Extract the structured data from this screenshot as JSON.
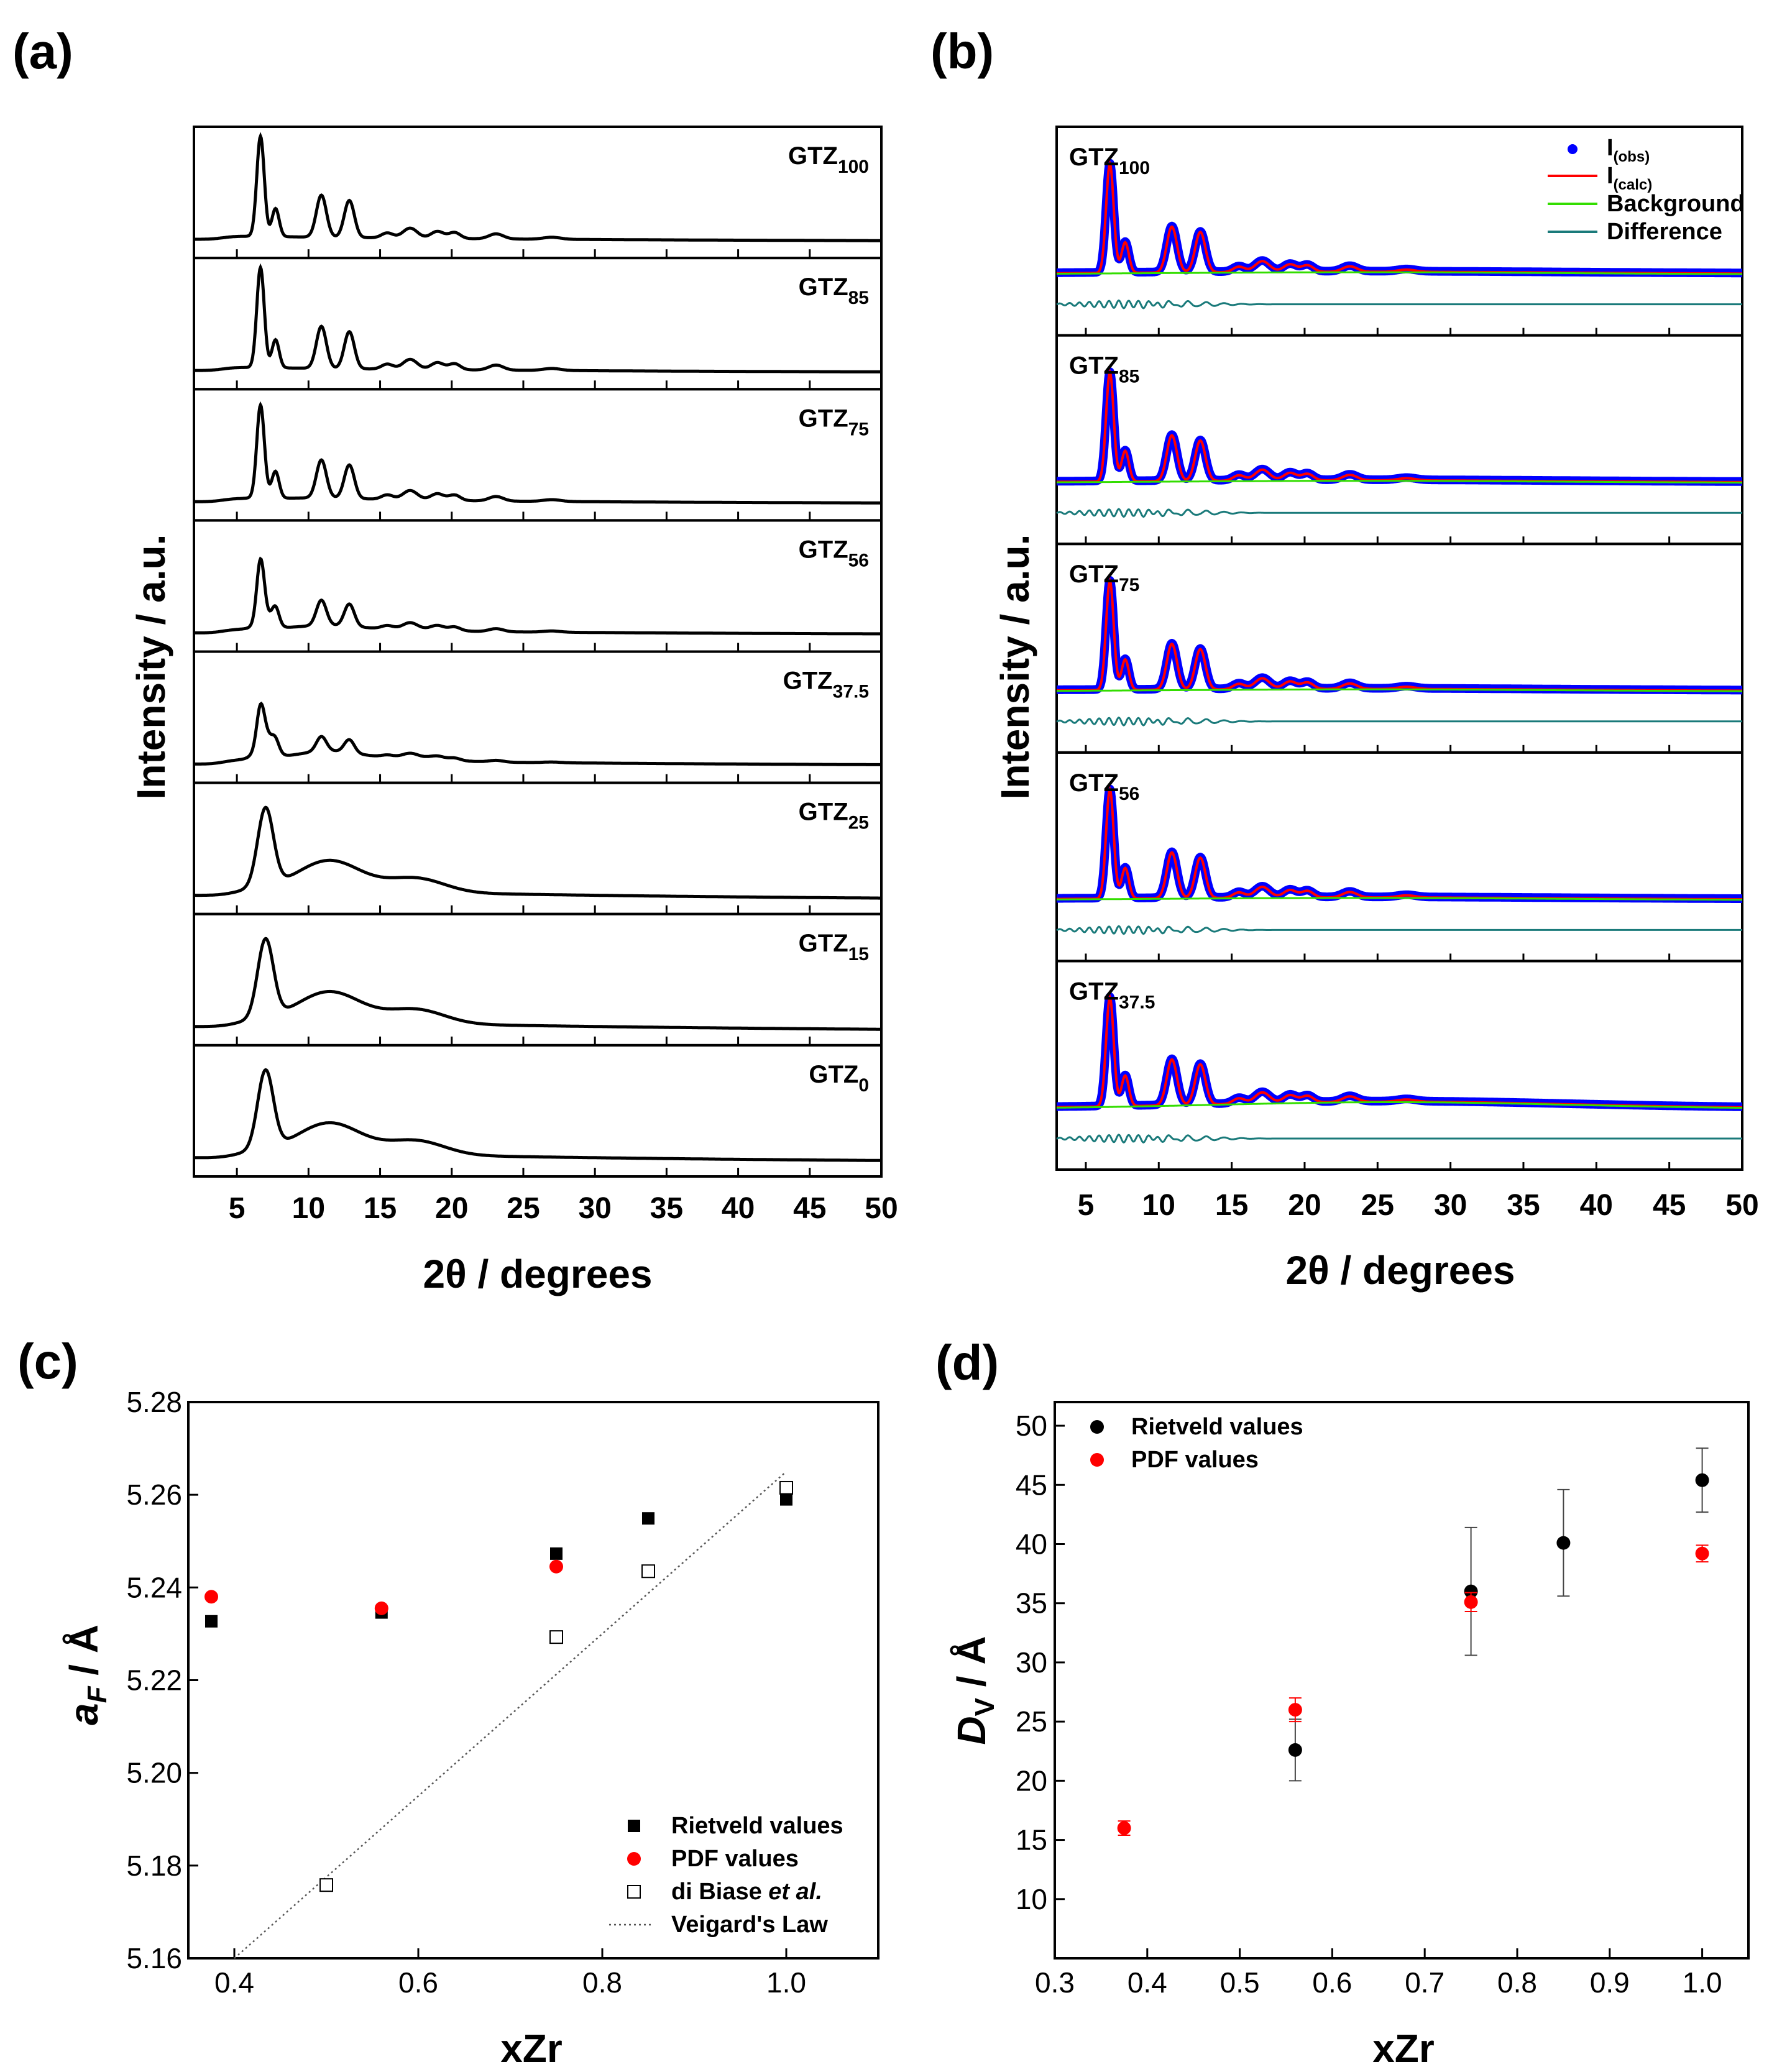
{
  "chart_data": [
    {
      "id": "a",
      "panel_label": "(a)",
      "type": "line",
      "title": "",
      "xlabel": "2θ / degrees",
      "ylabel": "Intensity / a.u.",
      "xlim": [
        2,
        50
      ],
      "xticks": [
        5,
        10,
        15,
        20,
        25,
        30,
        35,
        40,
        45,
        50
      ],
      "series": [
        {
          "name": "GTZ100",
          "base": "GTZ",
          "sub": "100",
          "peak_scale": 1.0,
          "amorphous": 0.0
        },
        {
          "name": "GTZ85",
          "base": "GTZ",
          "sub": "85",
          "peak_scale": 1.0,
          "amorphous": 0.0
        },
        {
          "name": "GTZ75",
          "base": "GTZ",
          "sub": "75",
          "peak_scale": 0.9,
          "amorphous": 0.05
        },
        {
          "name": "GTZ56",
          "base": "GTZ",
          "sub": "56",
          "peak_scale": 0.6,
          "amorphous": 0.15
        },
        {
          "name": "GTZ37.5",
          "base": "GTZ",
          "sub": "37.5",
          "peak_scale": 0.35,
          "amorphous": 0.3
        },
        {
          "name": "GTZ25",
          "base": "GTZ",
          "sub": "25",
          "peak_scale": 0.0,
          "amorphous": 1.0
        },
        {
          "name": "GTZ15",
          "base": "GTZ",
          "sub": "15",
          "peak_scale": 0.0,
          "amorphous": 1.0
        },
        {
          "name": "GTZ0",
          "base": "GTZ",
          "sub": "0",
          "peak_scale": 0.0,
          "amorphous": 1.0
        }
      ]
    },
    {
      "id": "b",
      "panel_label": "(b)",
      "type": "line",
      "title": "",
      "xlabel": "2θ / degrees",
      "ylabel": "Intensity / a.u.",
      "xlim": [
        3,
        50
      ],
      "xticks": [
        5,
        10,
        15,
        20,
        25,
        30,
        35,
        40,
        45,
        50
      ],
      "legend": [
        {
          "base": "I",
          "sub": "(obs)",
          "color": "#0000ff",
          "style": "dot"
        },
        {
          "base": "I",
          "sub": "(calc)",
          "color": "#ff0000",
          "style": "line"
        },
        {
          "base": "Background",
          "sub": "",
          "color": "#33dd00",
          "style": "line"
        },
        {
          "base": "Difference",
          "sub": "",
          "color": "#1a7a7a",
          "style": "line"
        }
      ],
      "series": [
        {
          "name": "GTZ100",
          "base": "GTZ",
          "sub": "100"
        },
        {
          "name": "GTZ85",
          "base": "GTZ",
          "sub": "85"
        },
        {
          "name": "GTZ75",
          "base": "GTZ",
          "sub": "75"
        },
        {
          "name": "GTZ56",
          "base": "GTZ",
          "sub": "56"
        },
        {
          "name": "GTZ37.5",
          "base": "GTZ",
          "sub": "37.5"
        }
      ]
    },
    {
      "id": "c",
      "panel_label": "(c)",
      "type": "scatter",
      "title": "",
      "xlabel": "xZr",
      "ylabel_italic": "a",
      "ylabel_sub": "F",
      "ylabel_rest": " / Å",
      "xlim": [
        0.35,
        1.1
      ],
      "ylim": [
        5.16,
        5.28
      ],
      "xticks": [
        0.4,
        0.6,
        0.8,
        1.0
      ],
      "xtick_labels": [
        "0.4",
        "0.6",
        "0.8",
        "1.0"
      ],
      "yticks": [
        5.16,
        5.18,
        5.2,
        5.22,
        5.24,
        5.26,
        5.28
      ],
      "ytick_labels": [
        "5.16",
        "5.18",
        "5.20",
        "5.22",
        "5.24",
        "5.26",
        "5.28"
      ],
      "series": [
        {
          "name": "Rietveld values",
          "marker": "filled-square",
          "color": "#000000",
          "x": [
            0.375,
            0.56,
            0.75,
            0.85,
            1.0
          ],
          "y": [
            5.2327,
            5.2346,
            5.2473,
            5.2549,
            5.259
          ]
        },
        {
          "name": "PDF values",
          "marker": "filled-circle",
          "color": "#ff0000",
          "x": [
            0.375,
            0.56,
            0.75
          ],
          "y": [
            5.238,
            5.2355,
            5.2445
          ]
        },
        {
          "name_plain": "di Biase ",
          "name_italic": "et al.",
          "marker": "open-square",
          "color": "#000000",
          "x": [
            0.5,
            0.75,
            0.85,
            1.0
          ],
          "y": [
            5.1758,
            5.2293,
            5.2435,
            5.2615
          ]
        },
        {
          "name": "Veigard's Law",
          "marker": "dotted-line",
          "color": "#555555",
          "x": [
            0.4,
            1.0
          ],
          "y": [
            5.16,
            5.265
          ]
        }
      ]
    },
    {
      "id": "d",
      "panel_label": "(d)",
      "type": "scatter",
      "title": "",
      "xlabel": "xZr",
      "ylabel_italic": "D",
      "ylabel_sub": "V",
      "ylabel_rest": " / Å",
      "xlim": [
        0.3,
        1.05
      ],
      "ylim": [
        5,
        52
      ],
      "xticks": [
        0.3,
        0.4,
        0.5,
        0.6,
        0.7,
        0.8,
        0.9,
        1.0
      ],
      "xtick_labels": [
        "0.3",
        "0.4",
        "0.5",
        "0.6",
        "0.7",
        "0.8",
        "0.9",
        "1.0"
      ],
      "yticks": [
        10,
        15,
        20,
        25,
        30,
        35,
        40,
        45,
        50
      ],
      "ytick_labels": [
        "10",
        "15",
        "20",
        "25",
        "30",
        "35",
        "40",
        "45",
        "50"
      ],
      "series": [
        {
          "name": "Rietveld values",
          "marker": "filled-circle",
          "color": "#000000",
          "x": [
            0.56,
            0.75,
            0.85,
            1.0
          ],
          "y": [
            22.6,
            36.0,
            40.1,
            45.4
          ],
          "err": [
            2.6,
            5.4,
            4.5,
            2.7
          ]
        },
        {
          "name": "PDF values",
          "marker": "filled-circle",
          "color": "#ff0000",
          "x": [
            0.375,
            0.56,
            0.75,
            1.0
          ],
          "y": [
            16.0,
            26.0,
            35.1,
            39.2
          ],
          "err": [
            0.6,
            1.0,
            0.8,
            0.7
          ]
        }
      ]
    }
  ]
}
